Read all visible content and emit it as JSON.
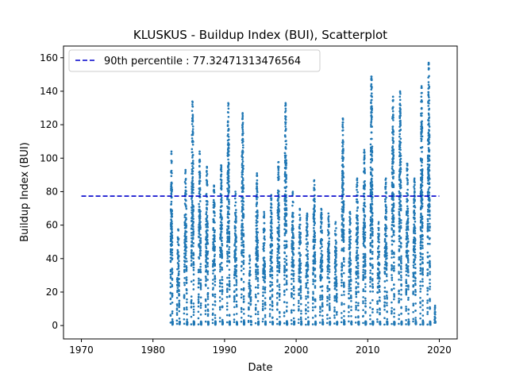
{
  "chart_data": {
    "type": "scatter",
    "title": "KLUSKUS - Buildup Index (BUI), Scatterplot",
    "xlabel": "Date",
    "ylabel": "Buildup Index (BUI)",
    "xlim": [
      1967.5,
      2022.5
    ],
    "ylim": [
      -8,
      167
    ],
    "xticks": [
      1970,
      1980,
      1990,
      2000,
      2010,
      2020
    ],
    "yticks": [
      0,
      20,
      40,
      60,
      80,
      100,
      120,
      140,
      160
    ],
    "grid": false,
    "legend_position": "top-left",
    "series": [
      {
        "kind": "reference_line",
        "name": "90th percentile : 77.32471313476564",
        "value": 77.32471313476564,
        "x_range": [
          1970,
          2020
        ],
        "color": "#0000cc",
        "style": "dashed"
      },
      {
        "kind": "points",
        "color": "#1f77b4",
        "seasons": [
          {
            "year": 1982,
            "start": 1982.45,
            "end": 1982.75,
            "max": 104
          },
          {
            "year": 1983,
            "start": 1983.35,
            "end": 1983.75,
            "max": 58
          },
          {
            "year": 1984,
            "start": 1984.35,
            "end": 1984.8,
            "max": 93
          },
          {
            "year": 1985,
            "start": 1985.35,
            "end": 1985.75,
            "max": 134
          },
          {
            "year": 1986,
            "start": 1986.35,
            "end": 1986.75,
            "max": 104
          },
          {
            "year": 1987,
            "start": 1987.35,
            "end": 1987.75,
            "max": 95
          },
          {
            "year": 1988,
            "start": 1988.35,
            "end": 1988.75,
            "max": 84
          },
          {
            "year": 1989,
            "start": 1989.35,
            "end": 1989.75,
            "max": 96
          },
          {
            "year": 1990,
            "start": 1990.35,
            "end": 1990.75,
            "max": 133
          },
          {
            "year": 1991,
            "start": 1991.35,
            "end": 1991.75,
            "max": 80
          },
          {
            "year": 1992,
            "start": 1992.35,
            "end": 1992.75,
            "max": 127
          },
          {
            "year": 1993,
            "start": 1993.35,
            "end": 1993.75,
            "max": 42
          },
          {
            "year": 1994,
            "start": 1994.35,
            "end": 1994.75,
            "max": 91
          },
          {
            "year": 1995,
            "start": 1995.35,
            "end": 1995.75,
            "max": 68
          },
          {
            "year": 1996,
            "start": 1996.35,
            "end": 1996.75,
            "max": 78
          },
          {
            "year": 1997,
            "start": 1997.35,
            "end": 1997.75,
            "max": 98
          },
          {
            "year": 1998,
            "start": 1998.35,
            "end": 1998.75,
            "max": 133
          },
          {
            "year": 1999,
            "start": 1999.35,
            "end": 1999.75,
            "max": 80
          },
          {
            "year": 2000,
            "start": 2000.35,
            "end": 2000.75,
            "max": 70
          },
          {
            "year": 2001,
            "start": 2001.35,
            "end": 2001.75,
            "max": 67
          },
          {
            "year": 2002,
            "start": 2002.35,
            "end": 2002.75,
            "max": 87
          },
          {
            "year": 2003,
            "start": 2003.35,
            "end": 2003.75,
            "max": 70
          },
          {
            "year": 2004,
            "start": 2004.35,
            "end": 2004.75,
            "max": 67
          },
          {
            "year": 2005,
            "start": 2005.35,
            "end": 2005.75,
            "max": 62
          },
          {
            "year": 2006,
            "start": 2006.35,
            "end": 2006.75,
            "max": 124
          },
          {
            "year": 2007,
            "start": 2007.35,
            "end": 2007.75,
            "max": 68
          },
          {
            "year": 2008,
            "start": 2008.35,
            "end": 2008.75,
            "max": 88
          },
          {
            "year": 2009,
            "start": 2009.35,
            "end": 2009.75,
            "max": 105
          },
          {
            "year": 2010,
            "start": 2010.35,
            "end": 2010.75,
            "max": 149
          },
          {
            "year": 2011,
            "start": 2011.35,
            "end": 2011.75,
            "max": 62
          },
          {
            "year": 2012,
            "start": 2012.35,
            "end": 2012.75,
            "max": 88
          },
          {
            "year": 2013,
            "start": 2013.35,
            "end": 2013.75,
            "max": 137
          },
          {
            "year": 2014,
            "start": 2014.35,
            "end": 2014.75,
            "max": 140
          },
          {
            "year": 2015,
            "start": 2015.35,
            "end": 2015.75,
            "max": 97
          },
          {
            "year": 2016,
            "start": 2016.35,
            "end": 2016.75,
            "max": 88
          },
          {
            "year": 2017,
            "start": 2017.35,
            "end": 2017.75,
            "max": 143
          },
          {
            "year": 2018,
            "start": 2018.35,
            "end": 2018.75,
            "max": 157
          },
          {
            "year": 2019,
            "start": 2019.35,
            "end": 2019.45,
            "max": 12
          }
        ]
      }
    ]
  }
}
